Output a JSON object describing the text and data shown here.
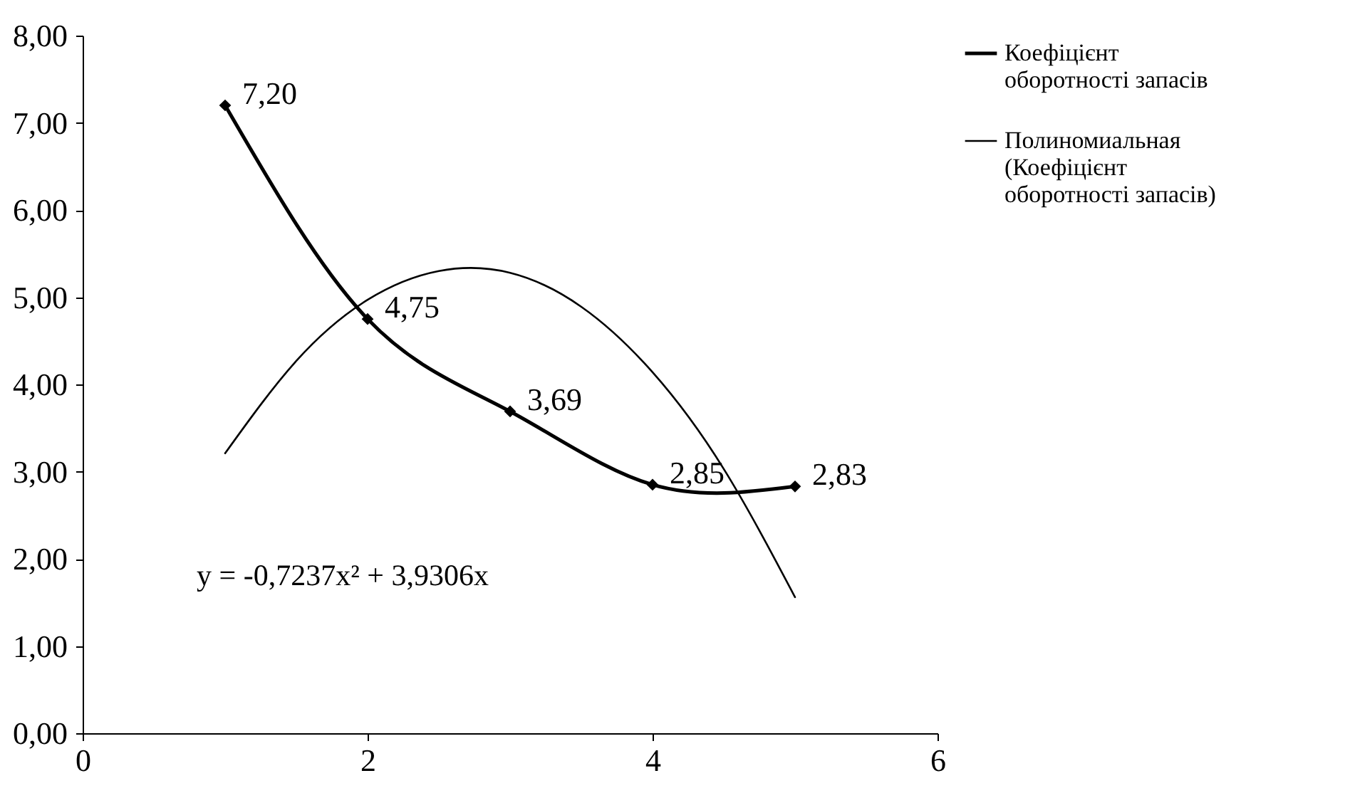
{
  "chart_data": {
    "type": "line",
    "x": [
      1,
      2,
      3,
      4,
      5
    ],
    "series": [
      {
        "name": "Коефіцієнт оборотності запасів",
        "color": "#000000",
        "values": [
          7.2,
          4.75,
          3.69,
          2.85,
          2.83
        ],
        "marker": "diamond",
        "value_labels": [
          "7,20",
          "4,75",
          "3,69",
          "2,85",
          "2,83"
        ]
      },
      {
        "name": "Полиномиальная (Коефіцієнт оборотності запасів)",
        "color": "#000000",
        "type": "line",
        "marker": "none",
        "x": [
          1,
          1.5,
          2,
          2.5,
          3,
          3.5,
          4,
          4.5,
          5
        ],
        "values": [
          3.21,
          4.27,
          4.97,
          5.3,
          5.28,
          4.89,
          4.14,
          3.03,
          1.56
        ]
      }
    ],
    "annotations": [
      "y = -0,7237x² + 3,9306x"
    ],
    "xlim": [
      0,
      6
    ],
    "xticks": [
      0,
      2,
      4,
      6
    ],
    "ylim": [
      0,
      8
    ],
    "yticks": [
      {
        "value": 0,
        "label": "0,00"
      },
      {
        "value": 1,
        "label": "1,00"
      },
      {
        "value": 2,
        "label": "2,00"
      },
      {
        "value": 3,
        "label": "3,00"
      },
      {
        "value": 4,
        "label": "4,00"
      },
      {
        "value": 5,
        "label": "5,00"
      },
      {
        "value": 6,
        "label": "6,00"
      },
      {
        "value": 7,
        "label": "7,00"
      },
      {
        "value": 8,
        "label": "8,00"
      }
    ],
    "grid": false,
    "legend": "right"
  }
}
